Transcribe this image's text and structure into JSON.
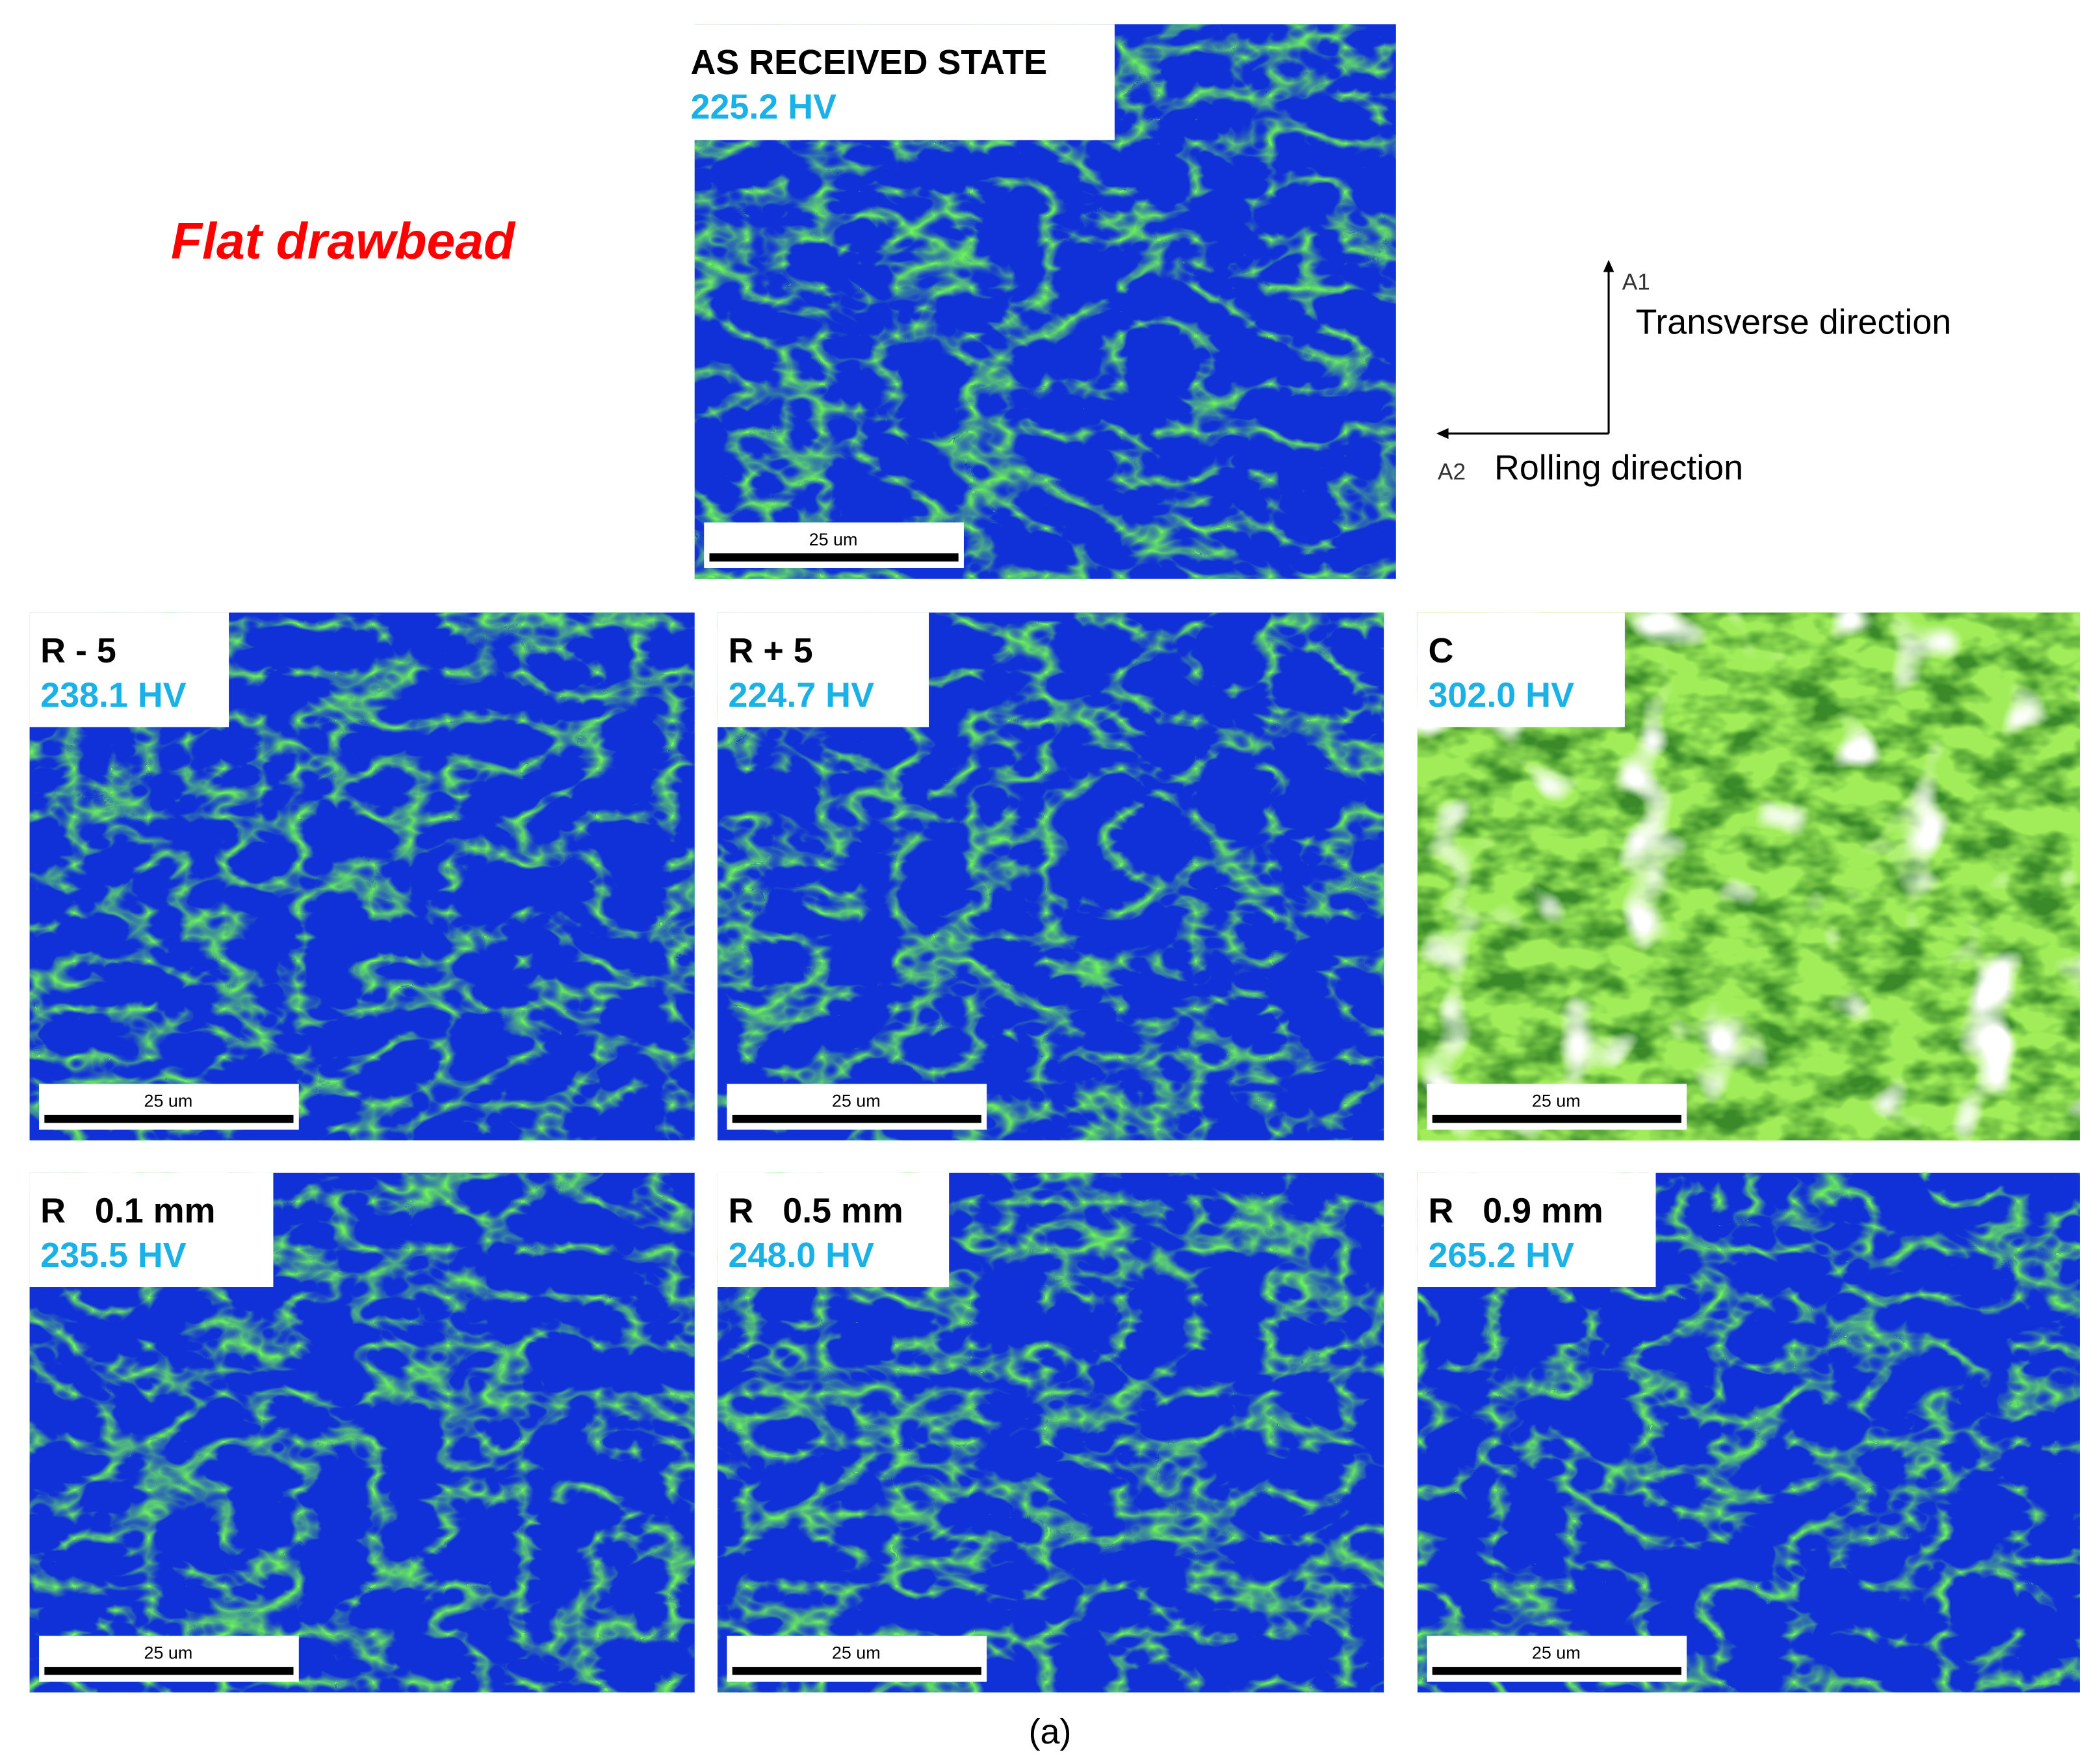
{
  "title": "Flat drawbead",
  "panels": [
    {
      "label": "AS RECEIVED STATE",
      "hardness": "225.2 HV",
      "scale_bar": "25 um"
    },
    {
      "label": "R - 5",
      "hardness": "238.1 HV",
      "scale_bar": "25 um"
    },
    {
      "label": "R + 5",
      "hardness": "224.7 HV",
      "scale_bar": "25 um"
    },
    {
      "label": "C",
      "hardness": "302.0 HV",
      "scale_bar": "25 um"
    },
    {
      "label": "R   0.1 mm",
      "hardness": "235.5 HV",
      "scale_bar": "25 um"
    },
    {
      "label": "R   0.5 mm",
      "hardness": "248.0 HV",
      "scale_bar": "25 um"
    },
    {
      "label": "R   0.9 mm",
      "hardness": "265.2 HV",
      "scale_bar": "25 um"
    }
  ],
  "axes": {
    "a1": "A1",
    "a1_label": "Transverse direction",
    "a2": "A2",
    "a2_label": "Rolling direction"
  },
  "caption": "(a)"
}
